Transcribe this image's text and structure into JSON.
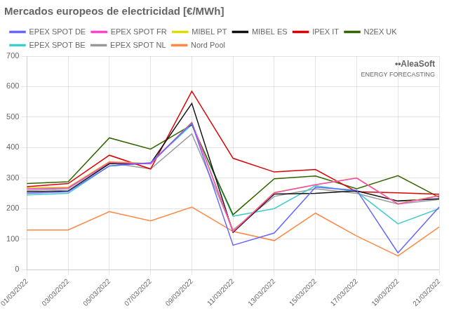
{
  "chart_data": {
    "type": "line",
    "title": "Mercados europeos de electricidad [€/MWh]",
    "categories": [
      "01/03/2022",
      "03/03/2022",
      "05/03/2022",
      "07/03/2022",
      "09/03/2022",
      "11/03/2022",
      "13/03/2022",
      "15/03/2022",
      "17/03/2022",
      "19/03/2022",
      "21/03/2022"
    ],
    "series": [
      {
        "name": "EPEX SPOT DE",
        "color": "#6666ff",
        "values": [
          250,
          255,
          340,
          350,
          480,
          80,
          120,
          270,
          260,
          55,
          205
        ]
      },
      {
        "name": "EPEX SPOT FR",
        "color": "#ff44cc",
        "values": [
          265,
          268,
          352,
          347,
          482,
          125,
          252,
          278,
          300,
          215,
          242
        ]
      },
      {
        "name": "MIBEL PT",
        "color": "#dddd00",
        "values": [
          268,
          270,
          354,
          348,
          483,
          126,
          253,
          278,
          301,
          216,
          243
        ]
      },
      {
        "name": "MIBEL ES",
        "color": "#111111",
        "values": [
          255,
          258,
          347,
          348,
          545,
          122,
          248,
          250,
          258,
          225,
          232
        ]
      },
      {
        "name": "IPEX IT",
        "color": "#dd0000",
        "values": [
          272,
          282,
          375,
          330,
          585,
          365,
          320,
          328,
          255,
          252,
          247
        ]
      },
      {
        "name": "N2EX UK",
        "color": "#336600",
        "values": [
          282,
          288,
          432,
          395,
          475,
          180,
          298,
          307,
          265,
          308,
          237
        ]
      },
      {
        "name": "EPEX SPOT BE",
        "color": "#44cccc",
        "values": [
          245,
          250,
          340,
          350,
          475,
          175,
          200,
          275,
          255,
          150,
          200
        ]
      },
      {
        "name": "EPEX SPOT NL",
        "color": "#999999",
        "values": [
          260,
          265,
          350,
          330,
          445,
          130,
          240,
          265,
          250,
          215,
          230
        ]
      },
      {
        "name": "Nord Pool",
        "color": "#ff8844",
        "values": [
          130,
          130,
          190,
          160,
          205,
          125,
          95,
          185,
          110,
          45,
          140
        ]
      }
    ],
    "ylim": [
      0,
      700
    ],
    "yticks": [
      0,
      100,
      200,
      300,
      400,
      500,
      600,
      700
    ],
    "grid": true,
    "legend": "top",
    "annotations": [
      "••AleaSoft",
      "ENERGY FORECASTING"
    ]
  }
}
